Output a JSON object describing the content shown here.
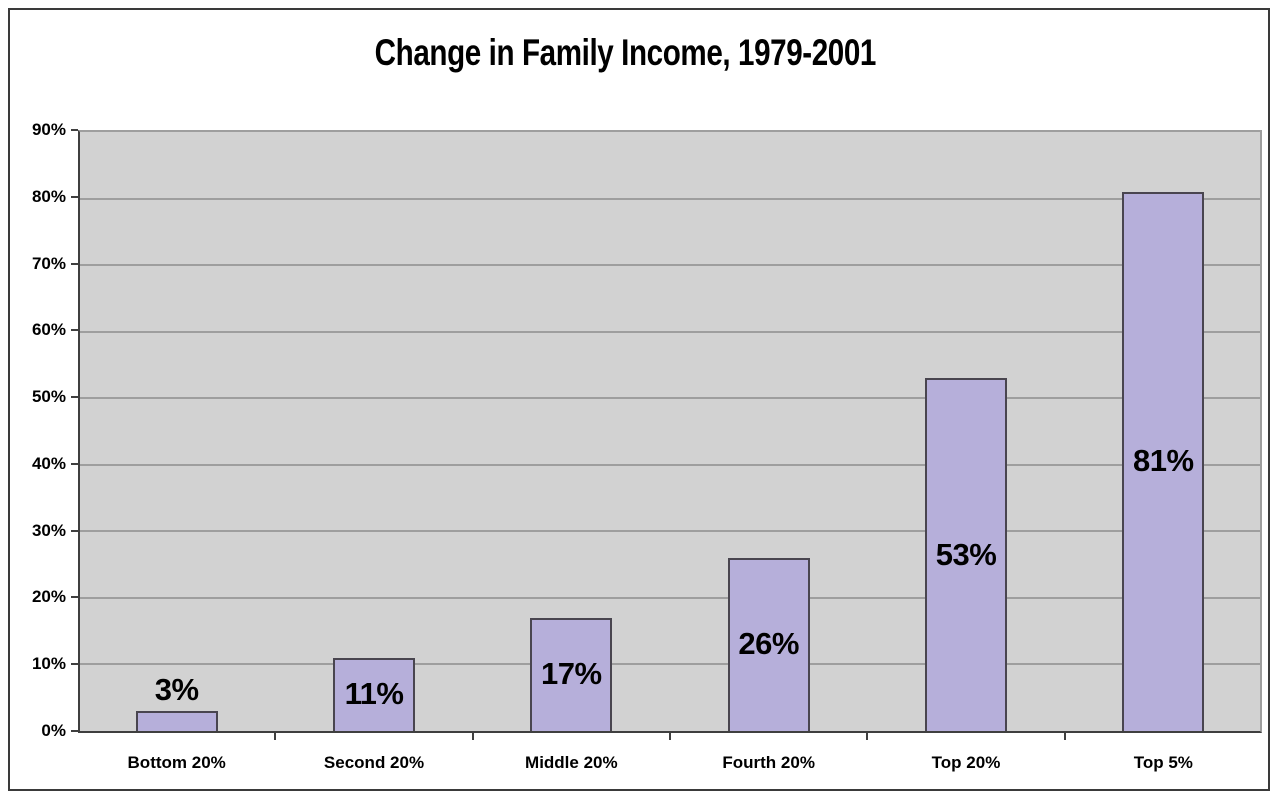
{
  "title": "Change in Family Income, 1979-2001",
  "chart_data": {
    "type": "bar",
    "title": "Change in Family Income, 1979-2001",
    "categories": [
      "Bottom 20%",
      "Second 20%",
      "Middle 20%",
      "Fourth 20%",
      "Top 20%",
      "Top 5%"
    ],
    "values": [
      3,
      11,
      17,
      26,
      53,
      81
    ],
    "bar_labels": [
      "3%",
      "11%",
      "17%",
      "26%",
      "53%",
      "81%"
    ],
    "ytick_labels": [
      "0%",
      "10%",
      "20%",
      "30%",
      "40%",
      "50%",
      "60%",
      "70%",
      "80%",
      "90%"
    ],
    "ytick_values": [
      0,
      10,
      20,
      30,
      40,
      50,
      60,
      70,
      80,
      90
    ],
    "ylim": [
      0,
      90
    ],
    "ytick_step": 10,
    "xlabel": "",
    "ylabel": "",
    "grid": true,
    "legend": false,
    "layout_hints": {
      "value_label_position": "centered-in-bar, above bar when bar too short",
      "legend_position": "none"
    },
    "colors": {
      "bar_fill": "#b6afda",
      "bar_border": "#49454f",
      "plot_background": "#d2d2d2",
      "gridline": "#9e9e9e",
      "axis": "#3f3f3f",
      "frame_border": "#3a3a3a",
      "text": "#000000"
    }
  }
}
